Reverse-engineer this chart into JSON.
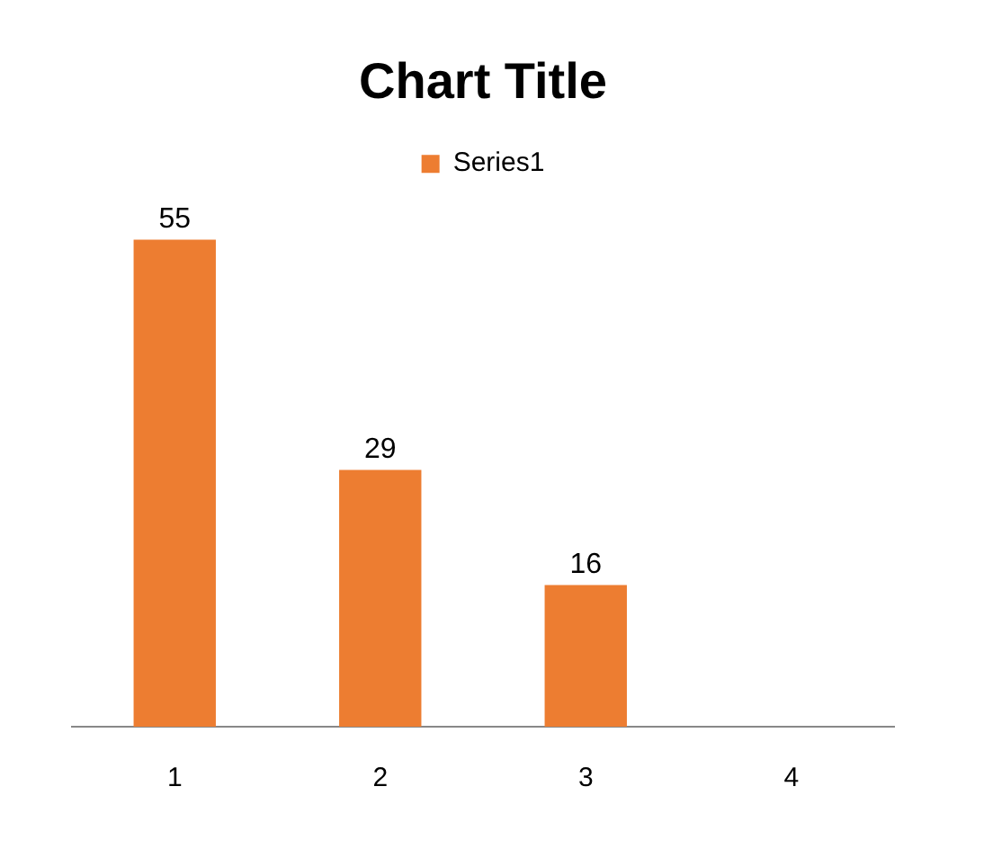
{
  "chart_data": {
    "type": "bar",
    "title": "Chart Title",
    "categories": [
      "1",
      "2",
      "3",
      "4"
    ],
    "series": [
      {
        "name": "Series1",
        "color": "#ed7d31",
        "values": [
          55,
          29,
          16,
          null
        ]
      }
    ],
    "data_labels": true,
    "legend": "top",
    "grid": false
  }
}
